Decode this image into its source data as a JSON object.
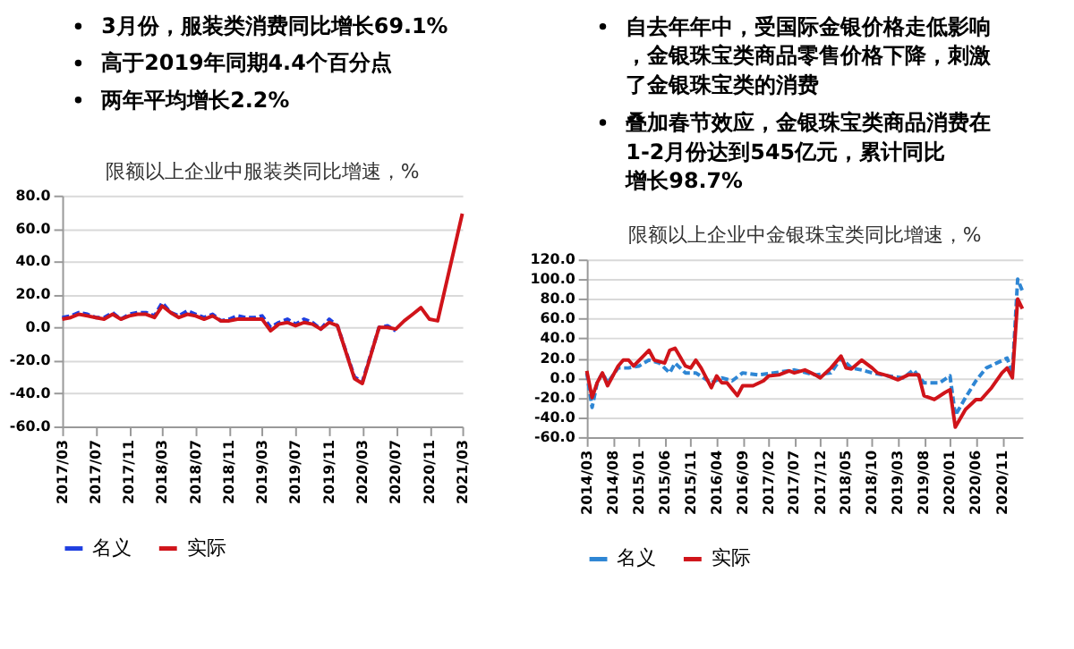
{
  "chart_data": [
    {
      "type": "line",
      "title": "限额以上企业中服装类同比增速，%",
      "annotations": [
        "3月份，服装类消费同比增长69.1%",
        "高于2019年同期4.4个百分点",
        "两年平均增长2.2%"
      ],
      "x": [
        "2017-03",
        "2017-04",
        "2017-05",
        "2017-06",
        "2017-07",
        "2017-08",
        "2017-09",
        "2017-10",
        "2017-11",
        "2017-12",
        "2018-01",
        "2018-02",
        "2018-03",
        "2018-04",
        "2018-05",
        "2018-06",
        "2018-07",
        "2018-08",
        "2018-09",
        "2018-10",
        "2018-11",
        "2018-12",
        "2019-01",
        "2019-02",
        "2019-03",
        "2019-04",
        "2019-05",
        "2019-06",
        "2019-07",
        "2019-08",
        "2019-09",
        "2019-10",
        "2019-11",
        "2019-12",
        "2020-02",
        "2020-03",
        "2020-05",
        "2020-06",
        "2020-07",
        "2020-08",
        "2020-09",
        "2020-10",
        "2020-11",
        "2020-12",
        "2021-03"
      ],
      "series": [
        {
          "name": "名义",
          "color": "#1f3fe0",
          "line_style": "dashed",
          "values": [
            6,
            7,
            9,
            8,
            6,
            6,
            9,
            5,
            8,
            9,
            9,
            7,
            15,
            9,
            7,
            10,
            8,
            6,
            8,
            4,
            5,
            7,
            6,
            6,
            7,
            0,
            3,
            5,
            2,
            5,
            3,
            -1,
            5,
            1,
            -30,
            -33,
            0,
            1,
            -2,
            null,
            null,
            null,
            null,
            null,
            null
          ]
        },
        {
          "name": "实际",
          "color": "#d0141a",
          "line_style": "solid",
          "values": [
            5,
            6,
            8,
            7,
            6,
            5,
            8,
            5,
            7,
            8,
            8,
            6,
            13,
            9,
            6,
            8,
            7,
            5,
            7,
            4,
            4,
            5,
            5,
            5,
            5,
            -2,
            2,
            3,
            1,
            3,
            2,
            -1,
            3,
            1,
            -31,
            -34,
            0,
            0,
            -1,
            4,
            8,
            12,
            5,
            4,
            69
          ]
        }
      ],
      "xlim": [
        "2017-03",
        "2021-03"
      ],
      "xticks": [
        {
          "value": "2017-03",
          "label": "2017/03"
        },
        {
          "value": "2017-07",
          "label": "2017/07"
        },
        {
          "value": "2017-11",
          "label": "2017/11"
        },
        {
          "value": "2018-03",
          "label": "2018/03"
        },
        {
          "value": "2018-07",
          "label": "2018/07"
        },
        {
          "value": "2018-11",
          "label": "2018/11"
        },
        {
          "value": "2019-03",
          "label": "2019/03"
        },
        {
          "value": "2019-07",
          "label": "2019/07"
        },
        {
          "value": "2019-11",
          "label": "2019/11"
        },
        {
          "value": "2020-03",
          "label": "2020/03"
        },
        {
          "value": "2020-07",
          "label": "2020/07"
        },
        {
          "value": "2020-11",
          "label": "2020/11"
        },
        {
          "value": "2021-03",
          "label": "2021/03"
        }
      ],
      "ylim": [
        -60,
        80
      ],
      "yticks": [
        {
          "value": -60,
          "label": "-60.0"
        },
        {
          "value": -40,
          "label": "-40.0"
        },
        {
          "value": -20,
          "label": "-20.0"
        },
        {
          "value": 0,
          "label": "0.0"
        },
        {
          "value": 20,
          "label": "20.0"
        },
        {
          "value": 40,
          "label": "40.0"
        },
        {
          "value": 60,
          "label": "60.0"
        },
        {
          "value": 80,
          "label": "80.0"
        }
      ],
      "grid": "y",
      "legend": "bottom",
      "marker": "none"
    },
    {
      "type": "line",
      "title": "限额以上企业中金银珠宝类同比增速，%",
      "annotations": [
        "自去年年中，受国际金银价格走低影响，金银珠宝类商品零售价格下降，刺激了金银珠宝类的消费",
        "叠加春节效应，金银珠宝类商品消费在1-2月份达到545亿元，累计同比增长98.7%"
      ],
      "series": [
        {
          "name": "名义",
          "color": "#2e86d4",
          "line_style": "dashed",
          "x": [
            "2014-03",
            "2014-04",
            "2014-05",
            "2014-06",
            "2014-07",
            "2014-09",
            "2014-11",
            "2015-01",
            "2015-03",
            "2015-05",
            "2015-07",
            "2015-08",
            "2015-10",
            "2015-12",
            "2016-03",
            "2016-05",
            "2016-07",
            "2016-09",
            "2016-12",
            "2017-03",
            "2017-07",
            "2017-11",
            "2018-02",
            "2018-04",
            "2018-06",
            "2018-08",
            "2018-10",
            "2019-01",
            "2019-04",
            "2019-06",
            "2019-08",
            "2019-11",
            "2020-01",
            "2020-02",
            "2020-04",
            "2020-06",
            "2020-08",
            "2020-10",
            "2020-12",
            "2021-01",
            "2021-02",
            "2021-03"
          ],
          "values": [
            5,
            -30,
            -5,
            5,
            -5,
            10,
            10,
            12,
            18,
            15,
            5,
            15,
            5,
            5,
            -5,
            0,
            -3,
            5,
            3,
            5,
            8,
            3,
            5,
            20,
            10,
            8,
            5,
            2,
            0,
            8,
            -5,
            -5,
            2,
            -38,
            -20,
            -3,
            10,
            15,
            20,
            5,
            100,
            88
          ]
        },
        {
          "name": "实际",
          "color": "#d0141a",
          "line_style": "solid",
          "x": [
            "2014-03",
            "2014-04",
            "2014-05",
            "2014-06",
            "2014-07",
            "2014-09",
            "2014-10",
            "2014-11",
            "2014-12",
            "2015-03",
            "2015-04",
            "2015-06",
            "2015-07",
            "2015-08",
            "2015-10",
            "2015-11",
            "2015-12",
            "2016-01",
            "2016-03",
            "2016-04",
            "2016-05",
            "2016-06",
            "2016-08",
            "2016-09",
            "2016-11",
            "2017-01",
            "2017-02",
            "2017-04",
            "2017-06",
            "2017-07",
            "2017-09",
            "2017-11",
            "2017-12",
            "2018-02",
            "2018-04",
            "2018-05",
            "2018-06",
            "2018-08",
            "2018-10",
            "2018-11",
            "2019-01",
            "2019-03",
            "2019-05",
            "2019-07",
            "2019-08",
            "2019-10",
            "2019-12",
            "2020-01",
            "2020-02",
            "2020-04",
            "2020-06",
            "2020-07",
            "2020-09",
            "2020-11",
            "2020-12",
            "2021-01",
            "2021-02",
            "2021-03"
          ],
          "values": [
            7,
            -20,
            -5,
            5,
            -8,
            12,
            18,
            18,
            12,
            28,
            18,
            15,
            28,
            30,
            12,
            10,
            18,
            10,
            -10,
            2,
            -5,
            -5,
            -18,
            -8,
            -8,
            -3,
            2,
            3,
            7,
            5,
            8,
            3,
            0,
            10,
            22,
            10,
            9,
            18,
            10,
            5,
            2,
            -2,
            3,
            3,
            -18,
            -22,
            -15,
            -12,
            -50,
            -32,
            -22,
            -22,
            -10,
            5,
            10,
            0,
            80,
            70
          ]
        }
      ],
      "xlim": [
        "2014-03",
        "2021-03"
      ],
      "xticks": [
        {
          "value": "2014-03",
          "label": "2014/03"
        },
        {
          "value": "2014-08",
          "label": "2014/08"
        },
        {
          "value": "2015-01",
          "label": "2015/01"
        },
        {
          "value": "2015-06",
          "label": "2015/06"
        },
        {
          "value": "2015-11",
          "label": "2015/11"
        },
        {
          "value": "2016-04",
          "label": "2016/04"
        },
        {
          "value": "2016-09",
          "label": "2016/09"
        },
        {
          "value": "2017-02",
          "label": "2017/02"
        },
        {
          "value": "2017-07",
          "label": "2017/07"
        },
        {
          "value": "2017-12",
          "label": "2017/12"
        },
        {
          "value": "2018-05",
          "label": "2018/05"
        },
        {
          "value": "2018-10",
          "label": "2018/10"
        },
        {
          "value": "2019-03",
          "label": "2019/03"
        },
        {
          "value": "2019-08",
          "label": "2019/08"
        },
        {
          "value": "2020-01",
          "label": "2020/01"
        },
        {
          "value": "2020-06",
          "label": "2020/06"
        },
        {
          "value": "2020-11",
          "label": "2020/11"
        }
      ],
      "ylim": [
        -60,
        120
      ],
      "yticks": [
        {
          "value": -60,
          "label": "-60.0"
        },
        {
          "value": -40,
          "label": "-40.0"
        },
        {
          "value": -20,
          "label": "-20.0"
        },
        {
          "value": 0,
          "label": "0.0"
        },
        {
          "value": 20,
          "label": "20.0"
        },
        {
          "value": 40,
          "label": "40.0"
        },
        {
          "value": 60,
          "label": "60.0"
        },
        {
          "value": 80,
          "label": "80.0"
        },
        {
          "value": 100,
          "label": "100.0"
        },
        {
          "value": 120,
          "label": "120.0"
        }
      ],
      "grid": "y",
      "legend": "bottom",
      "marker": "none"
    }
  ]
}
